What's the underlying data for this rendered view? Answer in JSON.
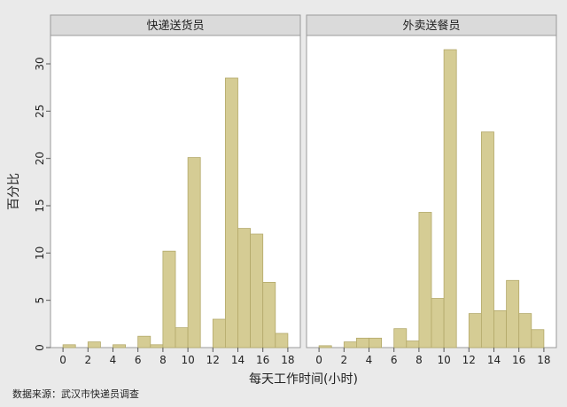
{
  "chart_data": {
    "type": "bar",
    "ylabel": "百分比",
    "xlabel": "每天工作时间(小时)",
    "xlim": [
      -1,
      19
    ],
    "ylim": [
      0,
      33
    ],
    "xticks": [
      "0",
      "2",
      "4",
      "6",
      "8",
      "10",
      "12",
      "14",
      "16",
      "18"
    ],
    "yticks": [
      "0",
      "5",
      "10",
      "15",
      "20",
      "25",
      "30"
    ],
    "grid": false,
    "bar_color": "#d5cc94",
    "bar_edge_color": "#b3a96a",
    "panels": [
      {
        "title": "快递送货员",
        "bars": [
          {
            "x": 1,
            "value": 0.3
          },
          {
            "x": 3,
            "value": 0.6
          },
          {
            "x": 5,
            "value": 0.3
          },
          {
            "x": 7,
            "value": 1.2
          },
          {
            "x": 8,
            "value": 0.3
          },
          {
            "x": 9,
            "value": 10.2
          },
          {
            "x": 10,
            "value": 2.1
          },
          {
            "x": 11,
            "value": 20.1
          },
          {
            "x": 13,
            "value": 3.0
          },
          {
            "x": 14,
            "value": 28.5
          },
          {
            "x": 15,
            "value": 12.6
          },
          {
            "x": 16,
            "value": 12.0
          },
          {
            "x": 17,
            "value": 6.9
          },
          {
            "x": 18,
            "value": 1.5
          }
        ]
      },
      {
        "title": "外卖送餐员",
        "bars": [
          {
            "x": 1,
            "value": 0.2
          },
          {
            "x": 3,
            "value": 0.6
          },
          {
            "x": 4,
            "value": 1.0
          },
          {
            "x": 5,
            "value": 1.0
          },
          {
            "x": 7,
            "value": 2.0
          },
          {
            "x": 8,
            "value": 0.7
          },
          {
            "x": 9,
            "value": 14.3
          },
          {
            "x": 10,
            "value": 5.2
          },
          {
            "x": 11,
            "value": 31.5
          },
          {
            "x": 13,
            "value": 3.6
          },
          {
            "x": 14,
            "value": 22.8
          },
          {
            "x": 15,
            "value": 3.9
          },
          {
            "x": 16,
            "value": 7.1
          },
          {
            "x": 17,
            "value": 3.6
          },
          {
            "x": 18,
            "value": 1.9
          }
        ]
      }
    ]
  },
  "source_note": "数据来源：武汉市快递员调查"
}
